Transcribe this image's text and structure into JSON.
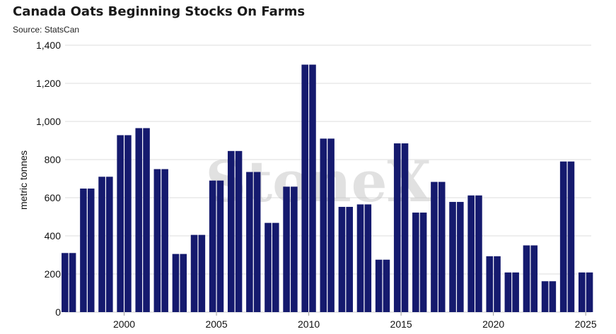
{
  "header": {
    "title": "Canada Oats Beginning Stocks On Farms",
    "source": "Source: StatsCan"
  },
  "watermark": "StoneX",
  "chart_data": {
    "type": "bar",
    "title": "Canada Oats Beginning Stocks On Farms",
    "xlabel": "",
    "ylabel": "metric tonnes",
    "ylim": [
      0,
      1400
    ],
    "yticks": [
      0,
      200,
      400,
      600,
      800,
      1000,
      1200,
      1400
    ],
    "ytick_labels": [
      "0",
      "200",
      "400",
      "600",
      "800",
      "1,000",
      "1,200",
      "1,400"
    ],
    "xlim": [
      1996.8,
      2025.3
    ],
    "xticks": [
      2000,
      2005,
      2010,
      2015,
      2020,
      2025
    ],
    "grid": true,
    "bar_color": "#151a6e",
    "categories": [
      1997,
      1998,
      1999,
      2000,
      2001,
      2002,
      2003,
      2004,
      2005,
      2006,
      2007,
      2008,
      2009,
      2010,
      2011,
      2012,
      2013,
      2014,
      2015,
      2016,
      2017,
      2018,
      2019,
      2020,
      2021,
      2022,
      2023,
      2024,
      2025
    ],
    "values": [
      310,
      648,
      710,
      928,
      965,
      750,
      305,
      405,
      690,
      845,
      735,
      468,
      658,
      1298,
      910,
      552,
      565,
      275,
      885,
      522,
      683,
      578,
      612,
      293,
      208,
      350,
      162,
      790,
      208
    ]
  }
}
